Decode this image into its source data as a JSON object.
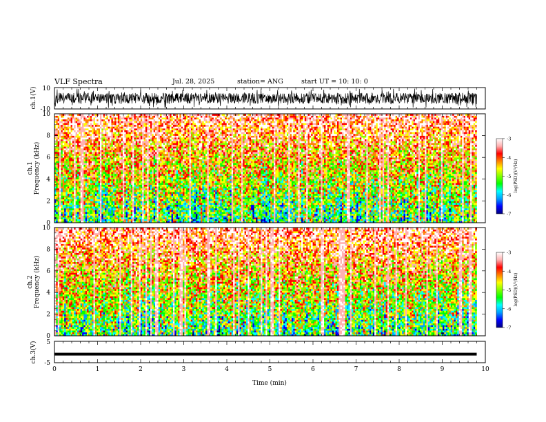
{
  "header": {
    "title": "VLF Spectra",
    "date": "Jul. 28, 2025",
    "station": "station= ANG",
    "start": "start  UT =   10: 10: 0"
  },
  "colors": {
    "spectrogram_ramp": [
      "#000080",
      "#0000ff",
      "#00a0ff",
      "#00ffff",
      "#00ff00",
      "#80ff00",
      "#ffff00",
      "#ff8000",
      "#ff0000",
      "#ffb0b0",
      "#ffffff"
    ],
    "trace": "#000000"
  },
  "chart_data": [
    {
      "type": "line",
      "panel": "ch1-waveform",
      "ylabel": "ch.1(V)",
      "ylim": [
        -10,
        10
      ],
      "yticks": [
        "10",
        "-10"
      ],
      "xlim": [
        0,
        10
      ],
      "description_of_trace": "dense noisy waveform spanning roughly -8 to +8 V from 0 to 9.8 min"
    },
    {
      "type": "heatmap",
      "panel": "ch1-spectrogram",
      "ylabel_line1": "ch.1",
      "ylabel_line2": "Frequency (kHz)",
      "ylim": [
        0,
        10
      ],
      "yticks": [
        "0",
        "2",
        "4",
        "6",
        "8",
        "10"
      ],
      "xlim": [
        0,
        10
      ],
      "data_end_min": 9.8,
      "colorbar": {
        "label": "log(PSD)(V²/Hz)",
        "ticks": [
          "-3",
          "-4",
          "-5",
          "-6",
          "-7"
        ],
        "range": [
          -7,
          -3
        ]
      }
    },
    {
      "type": "heatmap",
      "panel": "ch2-spectrogram",
      "ylabel_line1": "ch.2",
      "ylabel_line2": "Frequency (kHz)",
      "ylim": [
        0,
        10
      ],
      "yticks": [
        "0",
        "2",
        "4",
        "6",
        "8",
        "10"
      ],
      "xlim": [
        0,
        10
      ],
      "data_end_min": 9.8,
      "colorbar": {
        "label": "log(PSD)(V²/Hz)",
        "ticks": [
          "-3",
          "-4",
          "-5",
          "-6",
          "-7"
        ],
        "range": [
          -7,
          -3
        ]
      }
    },
    {
      "type": "line",
      "panel": "ch3-waveform",
      "ylabel": "ch.3(V)",
      "ylim": [
        -5,
        5
      ],
      "yticks": [
        "5",
        "-5"
      ],
      "xlim": [
        0,
        10
      ],
      "constant_value": -1,
      "xlabel": "Time (min)",
      "xticks": [
        "0",
        "1",
        "2",
        "3",
        "4",
        "5",
        "6",
        "7",
        "8",
        "9",
        "10"
      ]
    }
  ]
}
